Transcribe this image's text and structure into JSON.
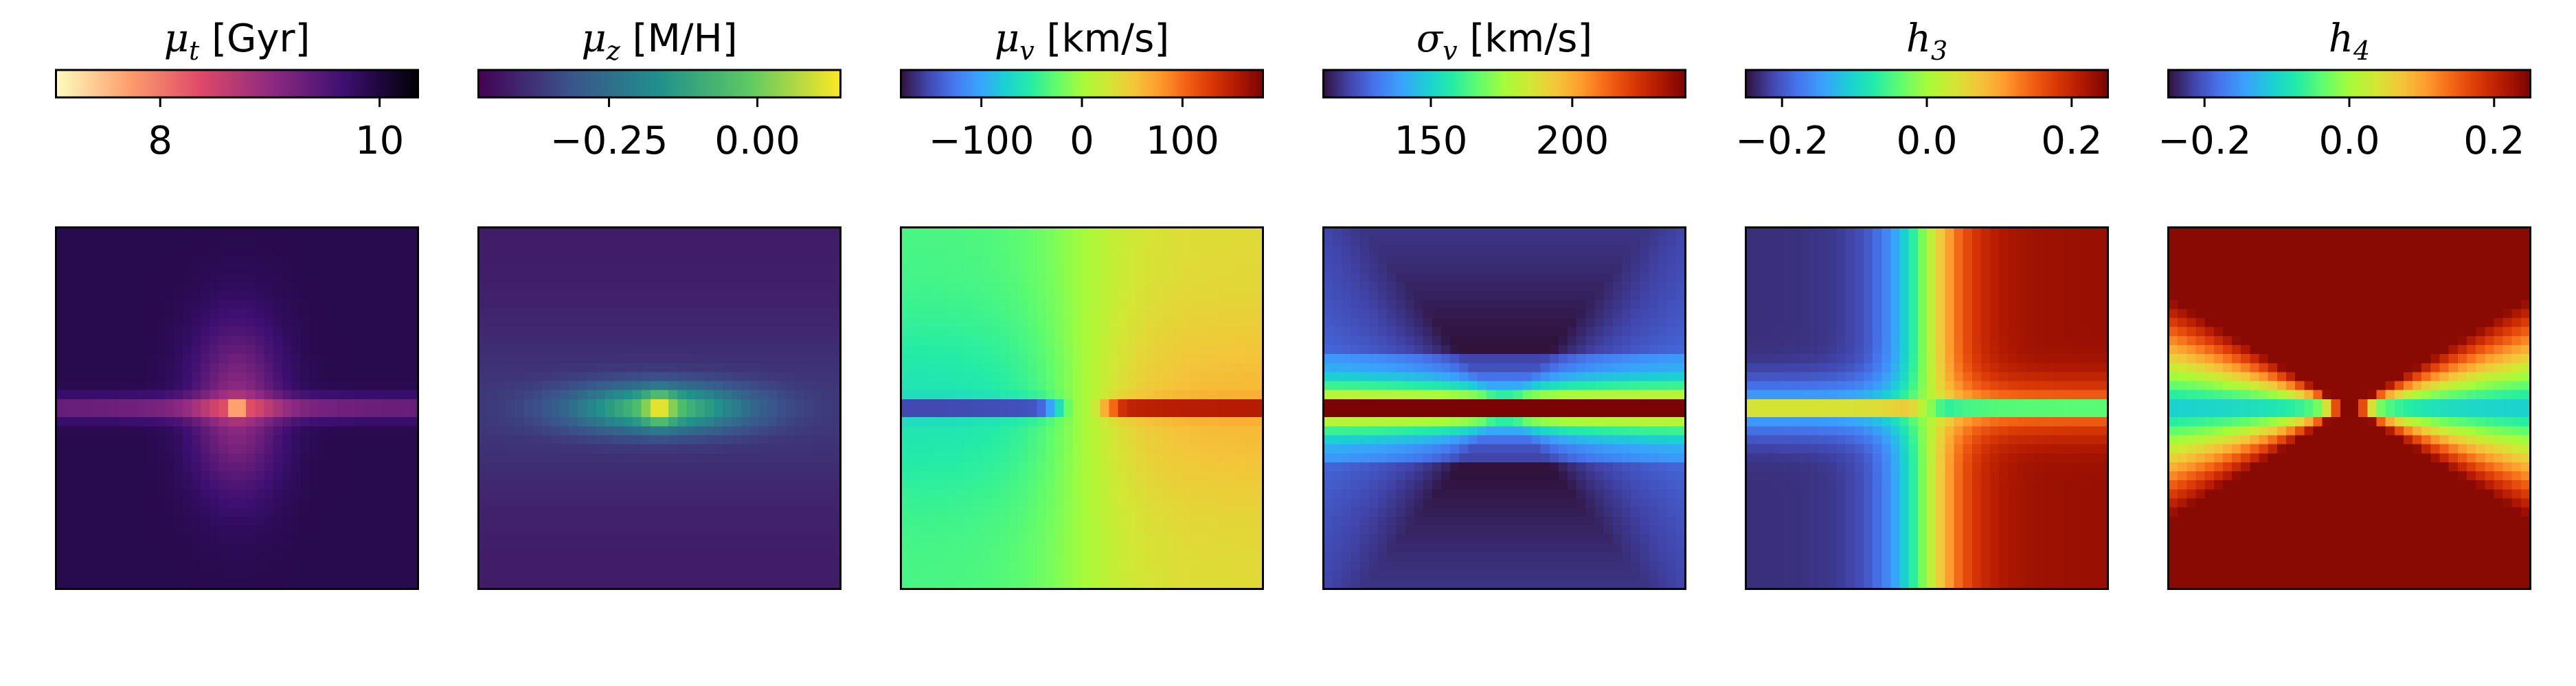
{
  "chart_data": [
    {
      "type": "heatmap",
      "title": {
        "sym": "μ",
        "sub": "t",
        "unit": " [Gyr]"
      },
      "colormap": "magma_r",
      "colormap_stops": [
        "#fcfdbf",
        "#fe9f6d",
        "#de4968",
        "#8c2981",
        "#3b0f70",
        "#000004"
      ],
      "clim": [
        7.05,
        10.35
      ],
      "ticks": [
        8,
        10
      ],
      "tick_labels": [
        "8",
        "10"
      ],
      "map": {
        "kind": "age",
        "base": 9.9,
        "features": [
          {
            "shape": "disk",
            "amp": 0.85,
            "width": 0.5,
            "thickness": 0.045
          },
          {
            "shape": "bulge",
            "amp": 0.9,
            "sx": 0.17,
            "sy": 0.32
          },
          {
            "shape": "core",
            "amp": 1.6,
            "radius": 0.025
          }
        ]
      }
    },
    {
      "type": "heatmap",
      "title": {
        "sym": "μ",
        "sub": "z",
        "unit": " [M/H]"
      },
      "colormap": "viridis",
      "colormap_stops": [
        "#440154",
        "#3b528b",
        "#21918c",
        "#5ec962",
        "#fde725"
      ],
      "clim": [
        -0.47,
        0.14
      ],
      "ticks": [
        -0.25,
        0.0
      ],
      "tick_labels": [
        "−0.25",
        "0.00"
      ],
      "map": {
        "kind": "metallicity",
        "base": -0.42,
        "features": [
          {
            "shape": "disk",
            "amp": 0.33,
            "width": 0.35,
            "thickness": 0.09
          },
          {
            "shape": "core",
            "amp": 0.2,
            "radius": 0.06
          }
        ]
      }
    },
    {
      "type": "heatmap",
      "title": {
        "sym": "μ",
        "sub": "v",
        "unit": " [km/s]"
      },
      "colormap": "turbo",
      "colormap_stops": [
        "#30123b",
        "#4145ab",
        "#4675ed",
        "#39a2fc",
        "#1bcfd4",
        "#24eca6",
        "#61fc6c",
        "#a4fc3b",
        "#d1e834",
        "#f3c63a",
        "#fe9b2d",
        "#f36315",
        "#d93806",
        "#b11901",
        "#7a0403"
      ],
      "clim": [
        -180,
        180
      ],
      "ticks": [
        -100,
        0,
        100
      ],
      "tick_labels": [
        "−100",
        "0",
        "100"
      ],
      "map": {
        "kind": "velocity",
        "disk_amp": 190,
        "disk_thickness": 0.03,
        "outer_amp": 60,
        "outer_scale": 0.35
      }
    },
    {
      "type": "heatmap",
      "title": {
        "sym": "σ",
        "sub": "v",
        "unit": " [km/s]"
      },
      "colormap": "turbo",
      "colormap_stops": [
        "#30123b",
        "#4145ab",
        "#4675ed",
        "#39a2fc",
        "#1bcfd4",
        "#24eca6",
        "#61fc6c",
        "#a4fc3b",
        "#d1e834",
        "#f3c63a",
        "#fe9b2d",
        "#f36315",
        "#d93806",
        "#b11901",
        "#7a0403"
      ],
      "clim": [
        112,
        240
      ],
      "ticks": [
        150,
        200
      ],
      "tick_labels": [
        "150",
        "200"
      ],
      "map": {
        "kind": "dispersion",
        "base": 120,
        "disk_amp": 110,
        "disk_thickness": 0.03,
        "band_amp": 45,
        "band_thickness": 0.1,
        "wedge_amp": 40
      }
    },
    {
      "type": "heatmap",
      "title": {
        "sym": "h",
        "sub": "3",
        "unit": ""
      },
      "colormap": "turbo",
      "colormap_stops": [
        "#30123b",
        "#4145ab",
        "#4675ed",
        "#39a2fc",
        "#1bcfd4",
        "#24eca6",
        "#61fc6c",
        "#a4fc3b",
        "#d1e834",
        "#f3c63a",
        "#fe9b2d",
        "#f36315",
        "#d93806",
        "#b11901",
        "#7a0403"
      ],
      "clim": [
        -0.25,
        0.25
      ],
      "ticks": [
        -0.2,
        0.0,
        0.2
      ],
      "tick_labels": [
        "−0.2",
        "0.0",
        "0.2"
      ],
      "map": {
        "kind": "h3",
        "outer_amp": 0.23,
        "disk_amp": -0.12,
        "disk_thickness": 0.03
      }
    },
    {
      "type": "heatmap",
      "title": {
        "sym": "h",
        "sub": "4",
        "unit": ""
      },
      "colormap": "turbo",
      "colormap_stops": [
        "#30123b",
        "#4145ab",
        "#4675ed",
        "#39a2fc",
        "#1bcfd4",
        "#24eca6",
        "#61fc6c",
        "#a4fc3b",
        "#d1e834",
        "#f3c63a",
        "#fe9b2d",
        "#f36315",
        "#d93806",
        "#b11901",
        "#7a0403"
      ],
      "clim": [
        -0.25,
        0.25
      ],
      "ticks": [
        -0.2,
        0.0,
        0.2
      ],
      "tick_labels": [
        "−0.2",
        "0.0",
        "0.2"
      ],
      "map": {
        "kind": "h4",
        "outer_value": 0.24,
        "wedge_value": -0.12,
        "core_value": 0.25
      }
    }
  ]
}
